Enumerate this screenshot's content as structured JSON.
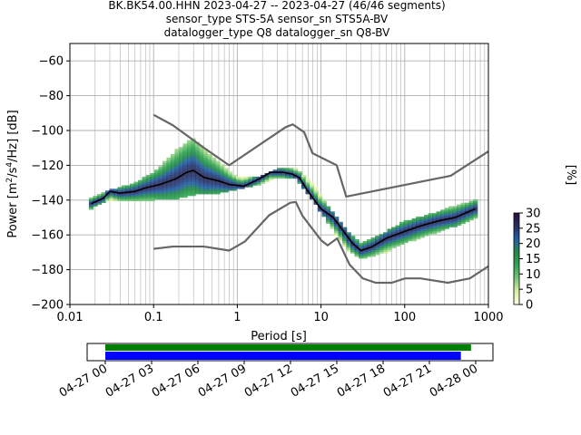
{
  "header": {
    "title_line1": "BK.BK54.00.HHN   2023-04-27 -- 2023-04-27  (46/46 segments)",
    "title_line2": "sensor_type STS-5A sensor_sn STS5A-BV",
    "title_line3": "datalogger_type Q8 datalogger_sn Q8-BV"
  },
  "chart_data": {
    "type": "heatmap",
    "title": "BK.BK54.00.HHN   2023-04-27 -- 2023-04-27  (46/46 segments)",
    "subtitle": [
      "sensor_type STS-5A sensor_sn STS5A-BV",
      "datalogger_type Q8 datalogger_sn Q8-BV"
    ],
    "xlabel": "Period [s]",
    "ylabel": "Power [m²/s⁴/Hz] [dB]",
    "xscale": "log",
    "xlim": [
      0.01,
      1000
    ],
    "ylim": [
      -200,
      -50
    ],
    "xticks": [
      0.01,
      0.1,
      1,
      10,
      100,
      1000
    ],
    "xtick_labels": [
      "0.01",
      "0.1",
      "1",
      "10",
      "100",
      "1000"
    ],
    "yticks": [
      -200,
      -180,
      -160,
      -140,
      -120,
      -100,
      -80,
      -60
    ],
    "ytick_labels": [
      "−200",
      "−180",
      "−160",
      "−140",
      "−120",
      "−100",
      "−80",
      "−60"
    ],
    "grid": true,
    "colorbar": {
      "label": "[%]",
      "range": [
        0,
        30
      ],
      "ticks": [
        0,
        5,
        10,
        15,
        20,
        25,
        30
      ],
      "tick_labels": [
        "0",
        "5",
        "10",
        "15",
        "20",
        "25",
        "30"
      ],
      "colormap": [
        "#ffffe5",
        "#d9f0a3",
        "#78c679",
        "#31a354",
        "#238b45",
        "#225ea8",
        "#2c2d5e",
        "#2a0f3e"
      ]
    },
    "series": [
      {
        "role": "noise-model-high",
        "color": "#666666",
        "x": [
          0.1,
          0.17,
          0.4,
          0.8,
          3.8,
          4.6,
          6.3,
          7.9,
          15.4,
          20,
          354.8,
          1000
        ],
        "y": [
          -91,
          -97,
          -110,
          -120,
          -98,
          -96.5,
          -101,
          -113,
          -120,
          -138,
          -126,
          -112
        ]
      },
      {
        "role": "noise-model-low",
        "color": "#666666",
        "x": [
          0.1,
          0.17,
          0.4,
          0.8,
          1.24,
          2.4,
          4.3,
          5,
          6,
          10,
          12,
          15.6,
          21.9,
          31.6,
          45,
          70,
          101,
          154,
          328,
          600,
          1000
        ],
        "y": [
          -168,
          -166.7,
          -166.7,
          -169,
          -163.7,
          -148.7,
          -141.5,
          -141.1,
          -149,
          -163,
          -166,
          -162,
          -177,
          -185,
          -187.5,
          -187.5,
          -185,
          -185,
          -187.5,
          -185,
          -178
        ]
      },
      {
        "role": "mean",
        "color": "#000000",
        "x": [
          0.018,
          0.025,
          0.03,
          0.04,
          0.06,
          0.08,
          0.12,
          0.18,
          0.25,
          0.3,
          0.4,
          0.6,
          0.8,
          1.2,
          1.8,
          2.5,
          3.5,
          4.5,
          5.5,
          7,
          10,
          14,
          18,
          24,
          30,
          40,
          60,
          100,
          150,
          250,
          400,
          700
        ],
        "y": [
          -142,
          -139,
          -135,
          -136,
          -135,
          -133,
          -131,
          -128,
          -124,
          -123,
          -127,
          -129,
          -131,
          -132,
          -128,
          -124,
          -124,
          -125,
          -127,
          -135,
          -145,
          -150,
          -157,
          -165,
          -169,
          -167,
          -162,
          -158,
          -155,
          -152,
          -150,
          -145
        ]
      }
    ],
    "density_bands": [
      {
        "x": [
          0.018,
          0.03,
          0.06,
          0.1,
          0.2,
          0.3,
          0.6,
          1,
          2,
          3,
          5,
          8,
          12,
          20,
          30,
          60,
          100,
          200,
          400,
          700
        ],
        "ylo": [
          -145,
          -140,
          -140,
          -140,
          -139,
          -137,
          -136,
          -134,
          -131,
          -127,
          -128,
          -140,
          -153,
          -168,
          -174,
          -170,
          -165,
          -160,
          -155,
          -150
        ],
        "yhi": [
          -139,
          -134,
          -130,
          -124,
          -110,
          -104,
          -118,
          -127,
          -126,
          -122,
          -122,
          -130,
          -143,
          -157,
          -165,
          -158,
          -152,
          -148,
          -143,
          -140
        ]
      }
    ]
  },
  "timeline": {
    "tick_labels": [
      "04-27 00",
      "04-27 03",
      "04-27 06",
      "04-27 09",
      "04-27 12",
      "04-27 15",
      "04-27 18",
      "04-27 21",
      "04-28 00"
    ],
    "data_coverage": [
      0.0,
      0.98
    ],
    "segments_coverage": [
      0.0,
      0.96
    ],
    "colors": {
      "data": "#008000",
      "segments": "#0000ff"
    }
  }
}
